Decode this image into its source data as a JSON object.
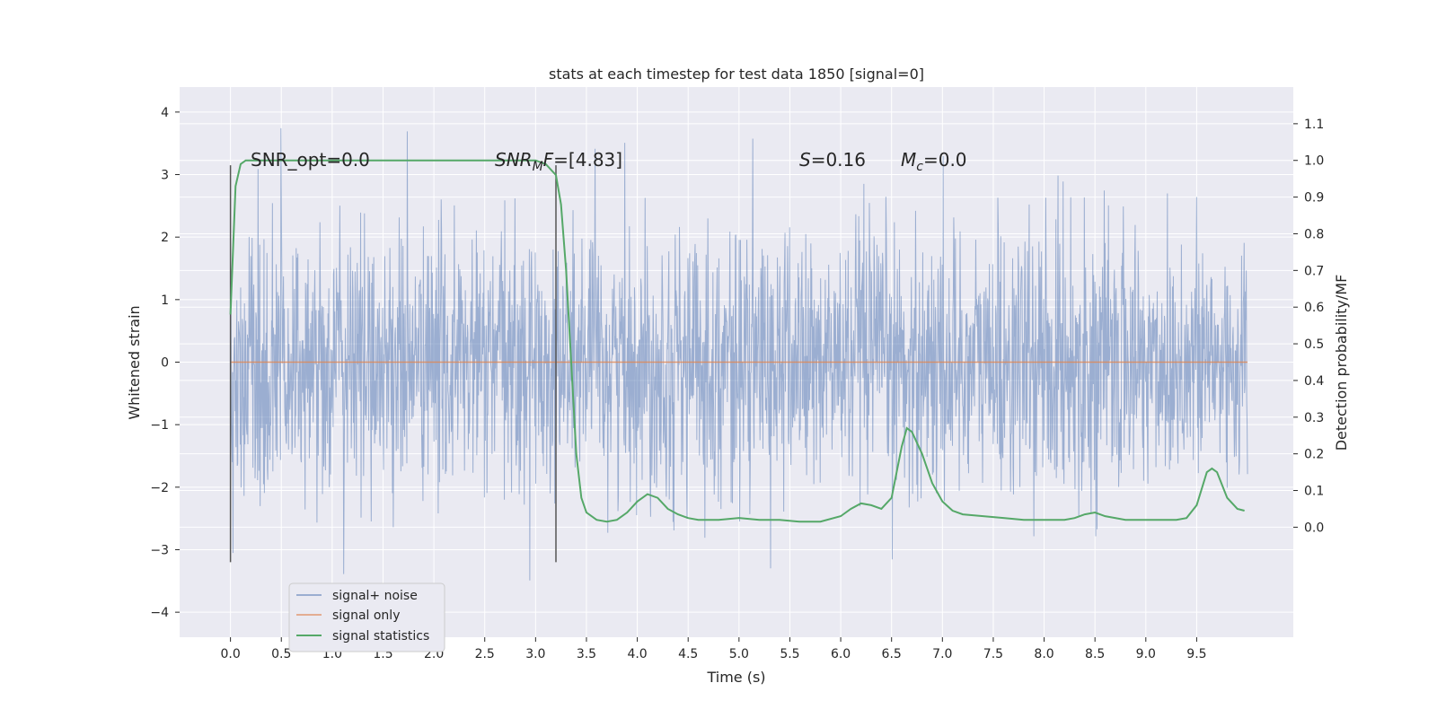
{
  "chart_data": {
    "type": "line",
    "title": "stats at each timestep for test data 1850 [signal=0]",
    "xlabel": "Time (s)",
    "ylabel": "Whitened strain",
    "ylabel_right": "Detection probability/MF",
    "xlim": [
      -0.5,
      10.45
    ],
    "ylim": [
      -4.4,
      4.4
    ],
    "ylim_right": [
      -0.3,
      1.2
    ],
    "x_ticks": [
      "0.0",
      "0.5",
      "1.0",
      "1.5",
      "2.0",
      "2.5",
      "3.0",
      "3.5",
      "4.0",
      "4.5",
      "5.0",
      "5.5",
      "6.0",
      "6.5",
      "7.0",
      "7.5",
      "8.0",
      "8.5",
      "9.0",
      "9.5"
    ],
    "x_tick_values": [
      0,
      0.5,
      1,
      1.5,
      2,
      2.5,
      3,
      3.5,
      4,
      4.5,
      5,
      5.5,
      6,
      6.5,
      7,
      7.5,
      8,
      8.5,
      9,
      9.5
    ],
    "y_ticks": [
      "4",
      "3",
      "2",
      "1",
      "0",
      "−1",
      "−2",
      "−3",
      "−4"
    ],
    "y_tick_values": [
      4,
      3,
      2,
      1,
      0,
      -1,
      -2,
      -3,
      -4
    ],
    "y_right_ticks": [
      "1.1",
      "1.0",
      "0.9",
      "0.8",
      "0.7",
      "0.6",
      "0.5",
      "0.4",
      "0.3",
      "0.2",
      "0.1",
      "0.0"
    ],
    "y_right_tick_values": [
      1.1,
      1.0,
      0.9,
      0.8,
      0.7,
      0.6,
      0.5,
      0.4,
      0.3,
      0.2,
      0.1,
      0.0
    ],
    "grid": true,
    "legend_position": "lower-left",
    "series": [
      {
        "name": "signal+ noise",
        "color": "#4c72b0",
        "description_data": {
          "x_range": [
            0,
            10
          ],
          "y_range": [
            -3.9,
            4.0
          ]
        }
      },
      {
        "name": "signal only",
        "color": "#dd8452",
        "x": [
          0,
          10
        ],
        "y": [
          0,
          0
        ]
      },
      {
        "name": "signal statistics",
        "color": "#55a868",
        "x": [
          0,
          0.05,
          0.1,
          0.15,
          0.2,
          0.3,
          0.5,
          1.0,
          1.5,
          2.0,
          2.5,
          2.8,
          3.0,
          3.1,
          3.2,
          3.25,
          3.3,
          3.35,
          3.4,
          3.45,
          3.5,
          3.6,
          3.7,
          3.8,
          3.9,
          4.0,
          4.1,
          4.2,
          4.3,
          4.4,
          4.5,
          4.6,
          4.8,
          5.0,
          5.2,
          5.4,
          5.6,
          5.8,
          6.0,
          6.1,
          6.2,
          6.3,
          6.4,
          6.5,
          6.6,
          6.65,
          6.7,
          6.8,
          6.9,
          7.0,
          7.1,
          7.2,
          7.4,
          7.6,
          7.8,
          8.0,
          8.2,
          8.3,
          8.4,
          8.5,
          8.6,
          8.8,
          9.0,
          9.2,
          9.3,
          9.4,
          9.5,
          9.6,
          9.65,
          9.7,
          9.8,
          9.9,
          9.97
        ],
        "y": [
          0.58,
          0.93,
          0.99,
          1.0,
          1.0,
          1.0,
          1.0,
          1.0,
          1.0,
          1.0,
          1.0,
          1.0,
          1.0,
          0.99,
          0.96,
          0.88,
          0.7,
          0.45,
          0.2,
          0.08,
          0.04,
          0.02,
          0.015,
          0.02,
          0.04,
          0.07,
          0.09,
          0.08,
          0.05,
          0.035,
          0.025,
          0.02,
          0.02,
          0.025,
          0.02,
          0.02,
          0.015,
          0.015,
          0.03,
          0.05,
          0.065,
          0.06,
          0.05,
          0.08,
          0.22,
          0.27,
          0.26,
          0.2,
          0.12,
          0.07,
          0.045,
          0.035,
          0.03,
          0.025,
          0.02,
          0.02,
          0.02,
          0.025,
          0.035,
          0.04,
          0.03,
          0.02,
          0.02,
          0.02,
          0.02,
          0.025,
          0.06,
          0.15,
          0.16,
          0.15,
          0.08,
          0.05,
          0.045
        ]
      }
    ],
    "vertical_markers": [
      {
        "x": 0,
        "y_range": [
          -3.2,
          3.15
        ]
      },
      {
        "x": 3.2,
        "y_range": [
          -3.2,
          3.15
        ]
      }
    ],
    "annotations": [
      {
        "text": "SNR_opt=0.0",
        "x": 0.2,
        "y": 3.2
      },
      {
        "text": "SNR_MF=[4.83]",
        "x": 2.6,
        "y": 3.2
      },
      {
        "text": "S=0.16",
        "x": 5.6,
        "y": 3.2
      },
      {
        "text": "M_c=0.0",
        "x": 6.6,
        "y": 3.2
      }
    ],
    "legend": [
      "signal+ noise",
      "signal only",
      "signal statistics"
    ]
  }
}
